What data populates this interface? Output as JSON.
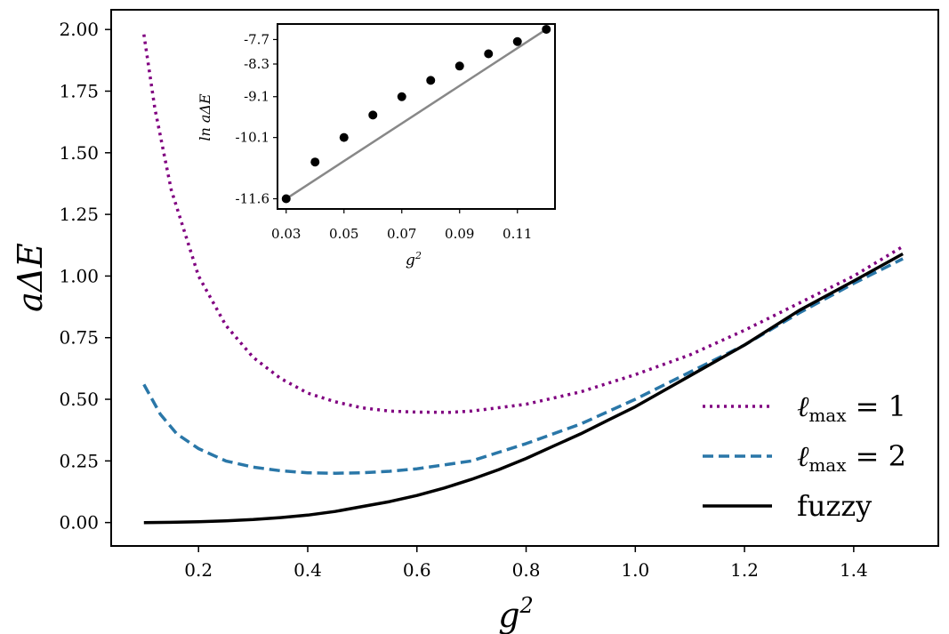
{
  "chart_data": [
    {
      "type": "line",
      "xlabel": "g",
      "xlabel_sup": "2",
      "ylabel": "aΔE",
      "xlim": [
        0.04,
        1.555
      ],
      "ylim": [
        -0.095,
        2.08
      ],
      "x_ticks": [
        0.2,
        0.4,
        0.6,
        0.8,
        1.0,
        1.2,
        1.4
      ],
      "x_tick_labels": [
        "0.2",
        "0.4",
        "0.6",
        "0.8",
        "1.0",
        "1.2",
        "1.4"
      ],
      "y_ticks": [
        0.0,
        0.25,
        0.5,
        0.75,
        1.0,
        1.25,
        1.5,
        1.75,
        2.0
      ],
      "y_tick_labels": [
        "0.00",
        "0.25",
        "0.50",
        "0.75",
        "1.00",
        "1.25",
        "1.50",
        "1.75",
        "2.00"
      ],
      "grid": false,
      "legend_position": "lower-right",
      "series": [
        {
          "name": "lmax1",
          "legend_prefix": "ℓ",
          "legend_sub": "max",
          "legend_suffix": " = 1",
          "color": "#800080",
          "style": "dotted",
          "x": [
            0.1,
            0.12,
            0.15,
            0.2,
            0.25,
            0.3,
            0.35,
            0.4,
            0.45,
            0.5,
            0.55,
            0.6,
            0.66,
            0.7,
            0.8,
            0.9,
            1.0,
            1.1,
            1.2,
            1.3,
            1.4,
            1.49
          ],
          "y": [
            1.98,
            1.68,
            1.35,
            1.0,
            0.8,
            0.67,
            0.585,
            0.525,
            0.49,
            0.465,
            0.452,
            0.448,
            0.447,
            0.452,
            0.48,
            0.53,
            0.6,
            0.68,
            0.78,
            0.89,
            1.0,
            1.12
          ]
        },
        {
          "name": "lmax2",
          "legend_prefix": "ℓ",
          "legend_sub": "max",
          "legend_suffix": " = 2",
          "color": "#2a77a8",
          "style": "dashed",
          "x": [
            0.1,
            0.13,
            0.16,
            0.2,
            0.25,
            0.3,
            0.35,
            0.4,
            0.45,
            0.5,
            0.55,
            0.6,
            0.7,
            0.8,
            0.9,
            1.0,
            1.1,
            1.2,
            1.3,
            1.4,
            1.49
          ],
          "y": [
            0.56,
            0.44,
            0.36,
            0.3,
            0.25,
            0.225,
            0.21,
            0.202,
            0.2,
            0.202,
            0.208,
            0.218,
            0.25,
            0.32,
            0.4,
            0.5,
            0.61,
            0.72,
            0.85,
            0.97,
            1.07
          ]
        },
        {
          "name": "fuzzy",
          "legend_label": "fuzzy",
          "color": "#000000",
          "style": "solid",
          "x": [
            0.1,
            0.15,
            0.2,
            0.25,
            0.3,
            0.35,
            0.4,
            0.45,
            0.5,
            0.55,
            0.6,
            0.65,
            0.7,
            0.75,
            0.8,
            0.85,
            0.9,
            0.95,
            1.0,
            1.1,
            1.2,
            1.3,
            1.4,
            1.49
          ],
          "y": [
            0.0,
            0.001,
            0.003,
            0.007,
            0.012,
            0.02,
            0.03,
            0.045,
            0.065,
            0.085,
            0.11,
            0.14,
            0.175,
            0.215,
            0.26,
            0.31,
            0.36,
            0.415,
            0.47,
            0.595,
            0.72,
            0.86,
            0.98,
            1.09
          ]
        }
      ]
    },
    {
      "type": "scatter",
      "subtype": "inset",
      "xlabel": "g",
      "xlabel_sup": "2",
      "ylabel": "ln aΔE",
      "xlim": [
        0.027,
        0.123
      ],
      "ylim": [
        -11.85,
        -7.32
      ],
      "x_ticks": [
        0.03,
        0.05,
        0.07,
        0.09,
        0.11
      ],
      "x_tick_labels": [
        "0.03",
        "0.05",
        "0.07",
        "0.09",
        "0.11"
      ],
      "y_ticks": [
        -11.6,
        -10.1,
        -9.1,
        -8.3,
        -7.7
      ],
      "y_tick_labels": [
        "-11.6",
        "-10.1",
        "-9.1",
        "-8.3",
        "-7.7"
      ],
      "points": {
        "x": [
          0.03,
          0.04,
          0.05,
          0.06,
          0.07,
          0.08,
          0.09,
          0.1,
          0.11,
          0.12
        ],
        "y": [
          -11.6,
          -10.7,
          -10.1,
          -9.55,
          -9.1,
          -8.7,
          -8.35,
          -8.05,
          -7.75,
          -7.45
        ]
      },
      "point_color": "#000000",
      "fit": {
        "x": [
          0.03,
          0.12
        ],
        "y": [
          -11.6,
          -7.45
        ],
        "color": "#888888"
      }
    }
  ]
}
